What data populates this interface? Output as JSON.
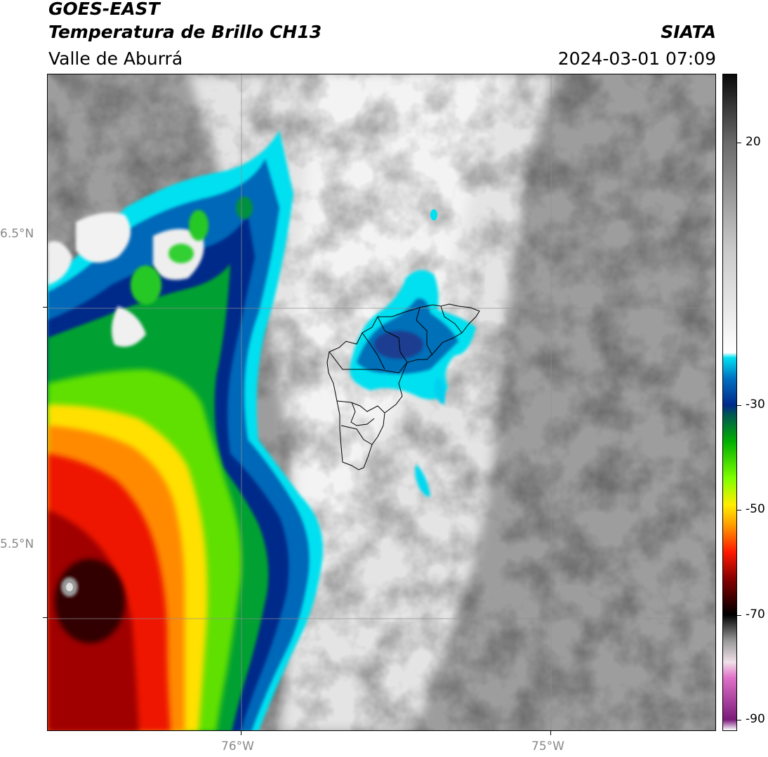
{
  "header": {
    "satellite": "GOES-EAST",
    "product": "Temperatura de Brillo CH13",
    "region": "Valle de Aburrá",
    "agency": "SIATA",
    "datetime": "2024-03-01 07:09"
  },
  "map": {
    "lat_labels": [
      "6.5°N",
      "5.5°N"
    ],
    "lon_labels": [
      "76°W",
      "75°W"
    ],
    "gridlines": true,
    "overlay": "municipal boundaries of Valle de Aburrá"
  },
  "colorbar": {
    "tick_labels": [
      "20",
      "-30",
      "-50",
      "-70",
      "-90"
    ],
    "range": [
      -92,
      33
    ],
    "stops": [
      {
        "value": -92,
        "color": "#ffffff"
      },
      {
        "value": -90,
        "color": "#7a1a7a"
      },
      {
        "value": -82,
        "color": "#e070c8"
      },
      {
        "value": -79,
        "color": "#f0e0e8"
      },
      {
        "value": -75,
        "color": "#9a9a9a"
      },
      {
        "value": -70,
        "color": "#000000"
      },
      {
        "value": -63,
        "color": "#8a0000"
      },
      {
        "value": -58,
        "color": "#ff1a00"
      },
      {
        "value": -53,
        "color": "#ff9a00"
      },
      {
        "value": -49,
        "color": "#ffee00"
      },
      {
        "value": -44,
        "color": "#80ff00"
      },
      {
        "value": -37,
        "color": "#00b000"
      },
      {
        "value": -32,
        "color": "#005a50"
      },
      {
        "value": -30,
        "color": "#002a8a"
      },
      {
        "value": -25,
        "color": "#0070c0"
      },
      {
        "value": -21,
        "color": "#00e0f0"
      },
      {
        "value": -20,
        "color": "#ffffff"
      },
      {
        "value": 0,
        "color": "#c8c8c8"
      },
      {
        "value": 20,
        "color": "#6a6a6a"
      },
      {
        "value": 33,
        "color": "#0a0a0a"
      }
    ]
  }
}
